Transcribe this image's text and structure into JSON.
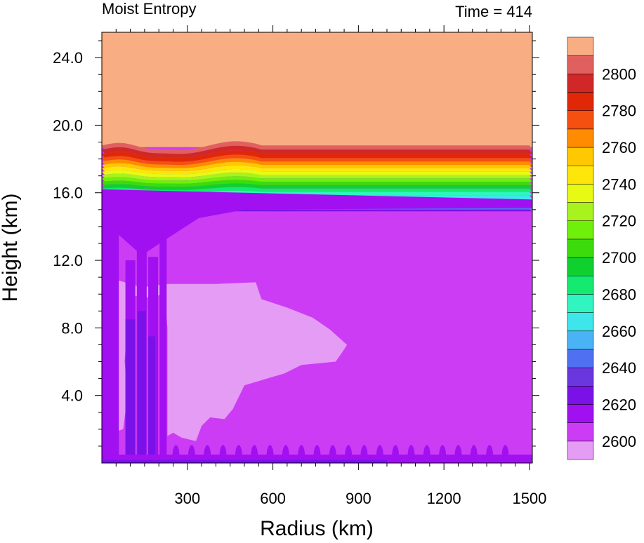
{
  "chart_data": {
    "type": "heatmap",
    "title_left": "Moist Entropy",
    "title_right": "Time = 414",
    "xlabel": "Radius (km)",
    "ylabel": "Height (km)",
    "xlim": [
      0,
      1510
    ],
    "ylim": [
      0,
      25.5
    ],
    "x_ticks": [
      300,
      600,
      900,
      1200,
      1500
    ],
    "x_tick_labels": [
      "300",
      "600",
      "900",
      "1200",
      "1500"
    ],
    "y_ticks": [
      4,
      8,
      12,
      16,
      20,
      24
    ],
    "y_tick_labels": [
      "4.0",
      "8.0",
      "12.0",
      "16.0",
      "20.0",
      "24.0"
    ],
    "colorbar": {
      "levels": [
        2590,
        2600,
        2610,
        2620,
        2630,
        2640,
        2650,
        2660,
        2670,
        2680,
        2690,
        2700,
        2710,
        2720,
        2730,
        2740,
        2750,
        2760,
        2770,
        2780,
        2790,
        2800,
        2810
      ],
      "colors": [
        "#e59cf4",
        "#cc3cf5",
        "#a010f0",
        "#7a12e8",
        "#6a36de",
        "#4f70f0",
        "#4ab3f6",
        "#3ee6ec",
        "#30f5c0",
        "#14ea70",
        "#10d030",
        "#3cdc0c",
        "#6ef00a",
        "#a8f21e",
        "#e6fa14",
        "#ffe60a",
        "#ffc800",
        "#ff8c00",
        "#f55010",
        "#e02808",
        "#d02828",
        "#e06060",
        "#f8ad82"
      ],
      "tick_labels": [
        "2600",
        "2620",
        "2640",
        "2660",
        "2680",
        "2700",
        "2720",
        "2740",
        "2760",
        "2780",
        "2800"
      ]
    },
    "field_description": [
      {
        "region": "stratosphere",
        "height_range_km": [
          18.7,
          25.5
        ],
        "value": 2810
      },
      {
        "region": "tropopause_gradient",
        "height_range_km": [
          15.0,
          18.7
        ],
        "value_range": [
          2620,
          2800
        ]
      },
      {
        "region": "middle_troposphere",
        "height_range_km": [
          0.5,
          15.0
        ],
        "value": 2610
      },
      {
        "region": "low_entropy_pocket",
        "radius_range_km": [
          0,
          850
        ],
        "height_range_km": [
          1.5,
          10.8
        ],
        "value": 2600
      },
      {
        "region": "eyewall_column",
        "radius_range_km": [
          0,
          230
        ],
        "height_range_km": [
          0,
          14.5
        ],
        "value": 2620
      }
    ]
  }
}
